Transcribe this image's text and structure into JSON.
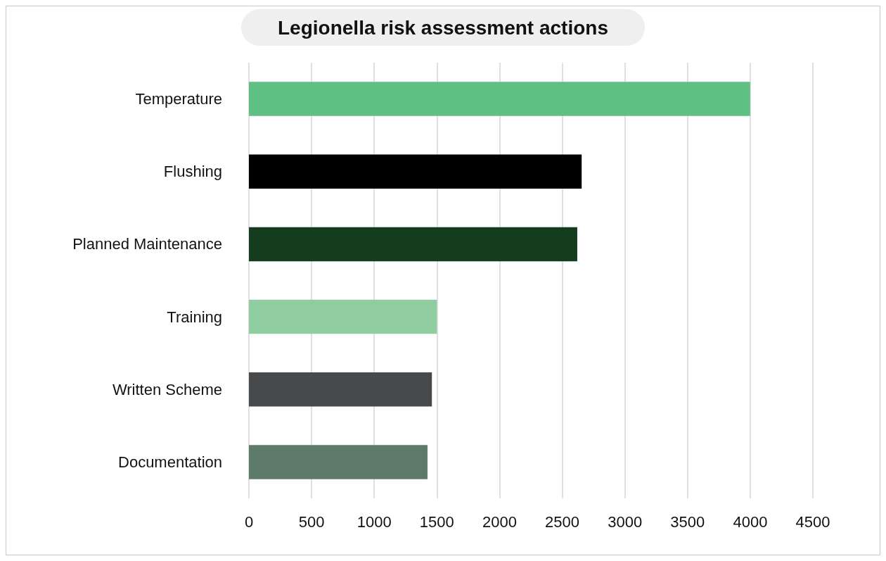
{
  "chart_data": {
    "type": "bar",
    "orientation": "horizontal",
    "title": "Legionella risk assessment actions",
    "categories": [
      "Temperature",
      "Flushing",
      "Planned Maintenance",
      "Training",
      "Written Scheme",
      "Documentation"
    ],
    "values": [
      4000,
      2655,
      2620,
      1500,
      1460,
      1425
    ],
    "colors": [
      "#60c084",
      "#000000",
      "#143d20",
      "#8fcca0",
      "#48494b",
      "#5e7a68"
    ],
    "xlim": [
      0,
      4500
    ],
    "xticks": [
      0,
      500,
      1000,
      1500,
      2000,
      2500,
      3000,
      3500,
      4000,
      4500
    ],
    "grid": "x"
  }
}
